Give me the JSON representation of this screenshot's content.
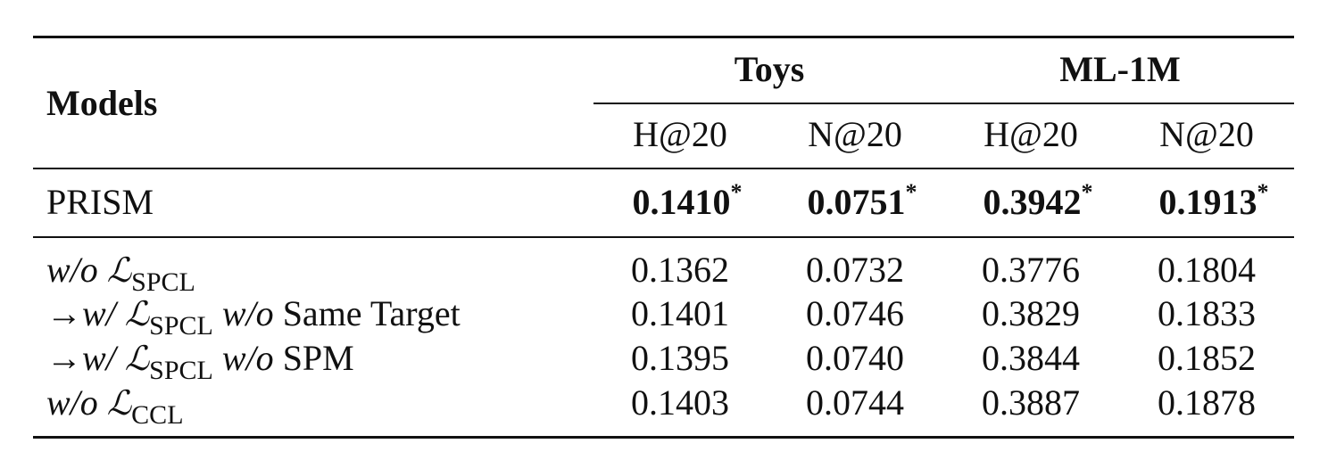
{
  "table": {
    "header": {
      "models": "Models",
      "groups": [
        "Toys",
        "ML-1M"
      ],
      "metrics": [
        "H@20",
        "N@20",
        "H@20",
        "N@20"
      ]
    },
    "main": {
      "label": "PRISM",
      "values": [
        "0.1410",
        "0.0751",
        "0.3942",
        "0.1913"
      ],
      "mark": "*"
    },
    "ablations": [
      {
        "label": [
          {
            "text": "w/o",
            "style": "italic"
          },
          {
            "text": "ℒ",
            "style": "script"
          },
          {
            "text": "SPCL",
            "style": "sub"
          }
        ],
        "values": [
          "0.1362",
          "0.0732",
          "0.3776",
          "0.1804"
        ]
      },
      {
        "label": [
          {
            "text": "→",
            "style": "plain"
          },
          {
            "text": "w/",
            "style": "italic"
          },
          {
            "text": "ℒ",
            "style": "script"
          },
          {
            "text": "SPCL",
            "style": "sub"
          },
          {
            "text": "w/o",
            "style": "italic"
          },
          {
            "text": "Same Target",
            "style": "plain"
          }
        ],
        "values": [
          "0.1401",
          "0.0746",
          "0.3829",
          "0.1833"
        ]
      },
      {
        "label": [
          {
            "text": "→",
            "style": "plain"
          },
          {
            "text": "w/",
            "style": "italic"
          },
          {
            "text": "ℒ",
            "style": "script"
          },
          {
            "text": "SPCL",
            "style": "sub"
          },
          {
            "text": "w/o",
            "style": "italic"
          },
          {
            "text": "SPM",
            "style": "plain"
          }
        ],
        "values": [
          "0.1395",
          "0.0740",
          "0.3844",
          "0.1852"
        ]
      },
      {
        "label": [
          {
            "text": "w/o",
            "style": "italic"
          },
          {
            "text": "ℒ",
            "style": "script"
          },
          {
            "text": "CCL",
            "style": "sub"
          }
        ],
        "values": [
          "0.1403",
          "0.0744",
          "0.3887",
          "0.1878"
        ]
      }
    ]
  }
}
